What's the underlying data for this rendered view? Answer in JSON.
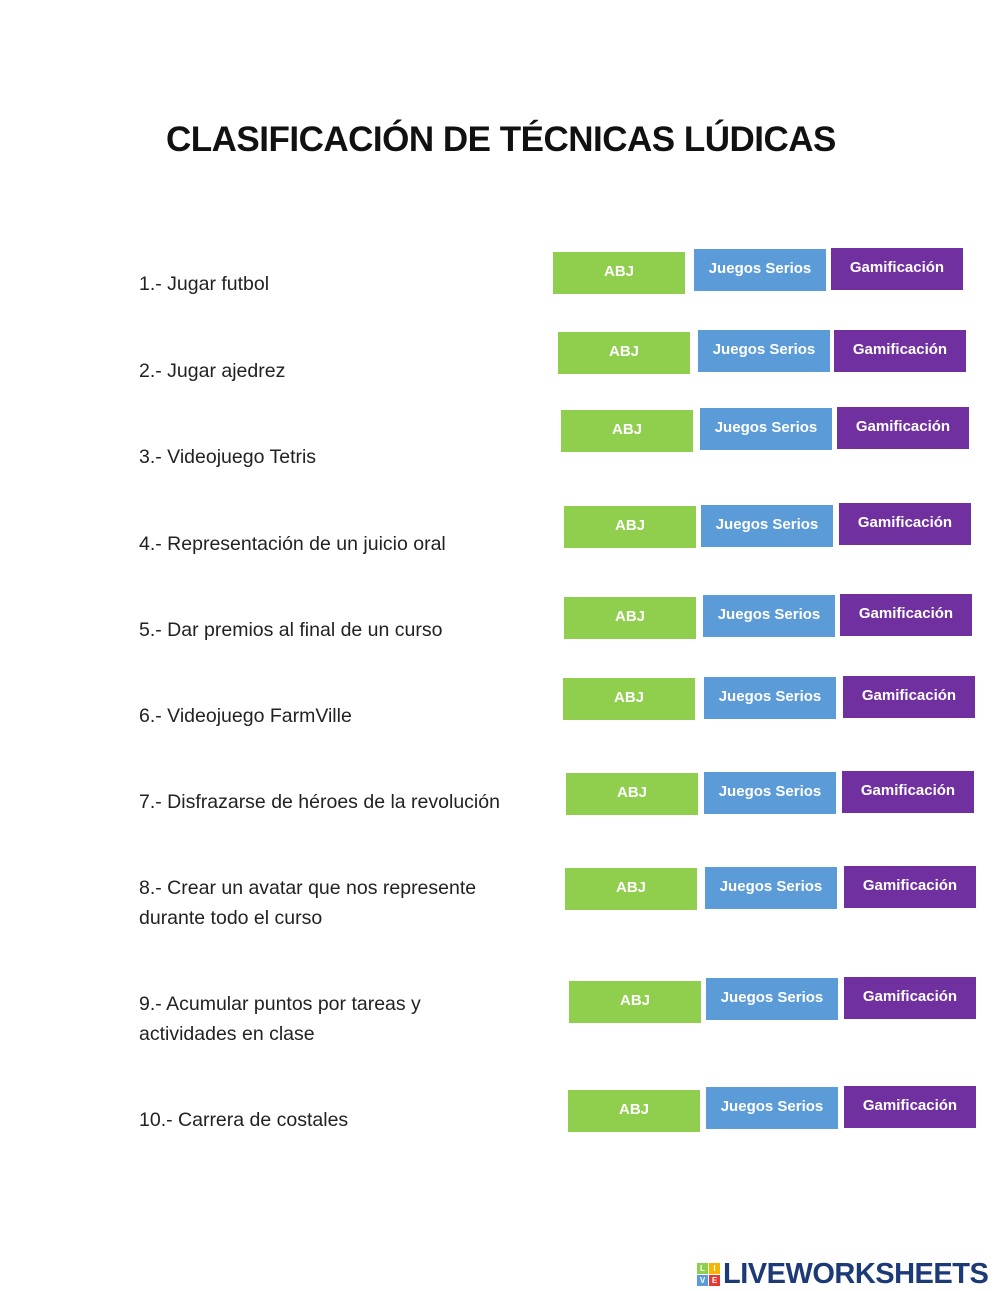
{
  "title": "CLASIFICACIÓN DE TÉCNICAS LÚDICAS",
  "options": [
    "ABJ",
    "Juegos Serios",
    "Gamificación"
  ],
  "colors": {
    "abj": "#8fcf4d",
    "juegos_serios": "#5b9bd8",
    "gamificacion": "#7030a0"
  },
  "items": [
    {
      "label": "1.- Jugar futbol"
    },
    {
      "label": "2.- Jugar ajedrez"
    },
    {
      "label": "3.- Videojuego Tetris"
    },
    {
      "label": "4.- Representación de un juicio oral"
    },
    {
      "label": "5.- Dar premios al final de un curso"
    },
    {
      "label": "6.- Videojuego FarmVille"
    },
    {
      "label": "7.- Disfrazarse de héroes de la revolución"
    },
    {
      "label": "8.- Crear un avatar que nos represente durante todo el curso"
    },
    {
      "label": "9.- Acumular puntos por tareas y actividades en clase"
    },
    {
      "label": "10.- Carrera de costales"
    }
  ],
  "logo": {
    "text": "LIVEWORKSHEETS",
    "cube_letters": [
      "L",
      "I",
      "V",
      "E"
    ]
  }
}
